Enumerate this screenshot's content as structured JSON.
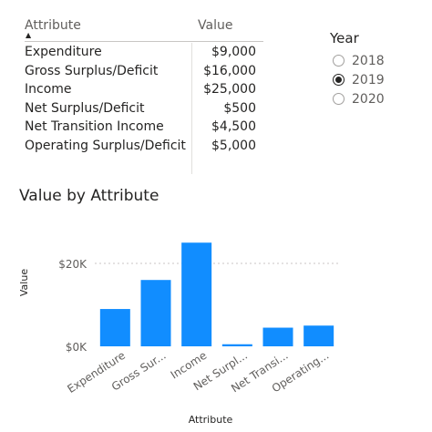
{
  "table": {
    "headers": {
      "attribute": "Attribute",
      "value": "Value"
    },
    "rows": [
      {
        "attribute": "Expenditure",
        "value": "$9,000"
      },
      {
        "attribute": "Gross Surplus/Deficit",
        "value": "$16,000"
      },
      {
        "attribute": "Income",
        "value": "$25,000"
      },
      {
        "attribute": "Net Surplus/Deficit",
        "value": "$500"
      },
      {
        "attribute": "Net Transition Income",
        "value": "$4,500"
      },
      {
        "attribute": "Operating Surplus/Deficit",
        "value": "$5,000"
      }
    ]
  },
  "slicer": {
    "title": "Year",
    "options": [
      {
        "label": "2018",
        "selected": false
      },
      {
        "label": "2019",
        "selected": true
      },
      {
        "label": "2020",
        "selected": false
      }
    ]
  },
  "chart_data": {
    "type": "bar",
    "title": "Value by Attribute",
    "xlabel": "Attribute",
    "ylabel": "Value",
    "categories": [
      "Expenditure",
      "Gross Surplus/Deficit",
      "Income",
      "Net Surplus/Deficit",
      "Net Transition Income",
      "Operating Surplus/Deficit"
    ],
    "tick_labels": [
      "Expenditure",
      "Gross Sur...",
      "Income",
      "Net Surpl...",
      "Net Transi...",
      "Operating..."
    ],
    "values": [
      9000,
      16000,
      25000,
      500,
      4500,
      5000
    ],
    "yticks": [
      {
        "value": 0,
        "label": "$0K"
      },
      {
        "value": 20000,
        "label": "$20K"
      }
    ],
    "ylim": [
      0,
      25000
    ],
    "grid": true,
    "colors": {
      "bar": "#118dff",
      "grid": "#c8c6c4",
      "axis_text": "#605e5c"
    }
  }
}
